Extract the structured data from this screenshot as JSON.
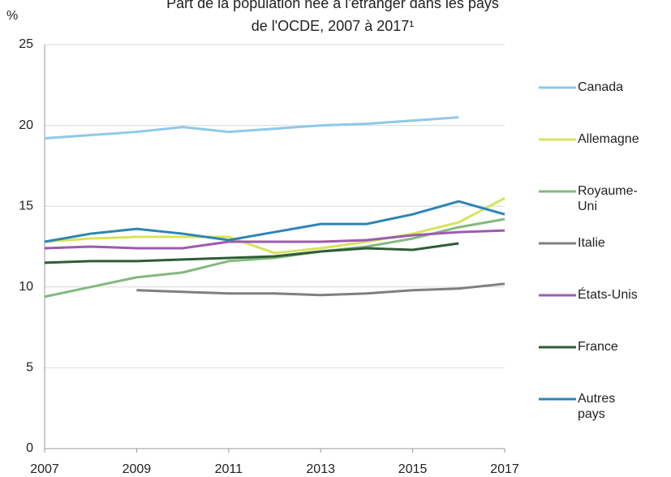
{
  "chart_data": {
    "type": "line",
    "title": [
      "Part de la population née à l'étranger dans les pays",
      "de l'OCDE, 2007 à 2017¹"
    ],
    "y_label": "%",
    "x": [
      2007,
      2008,
      2009,
      2010,
      2011,
      2012,
      2013,
      2014,
      2015,
      2016,
      2017
    ],
    "xlim": [
      2007,
      2017
    ],
    "xticks": [
      2007,
      2009,
      2011,
      2013,
      2015,
      2017
    ],
    "ylim": [
      0,
      25
    ],
    "yticks": [
      0,
      5,
      10,
      15,
      20,
      25
    ],
    "grid": true,
    "series": [
      {
        "name": "Canada",
        "color": "#8ec9e9",
        "values": [
          19.2,
          19.4,
          19.6,
          19.9,
          19.6,
          19.8,
          20.0,
          20.1,
          20.3,
          20.5,
          null
        ]
      },
      {
        "name": "Allemagne",
        "color": "#d7e35a",
        "values": [
          12.8,
          13.0,
          13.1,
          13.1,
          13.1,
          12.1,
          12.4,
          12.8,
          13.3,
          14.0,
          15.5
        ]
      },
      {
        "name": "Royaume-Uni",
        "color": "#82b97f",
        "values": [
          9.4,
          10.0,
          10.6,
          10.9,
          11.6,
          11.8,
          12.2,
          12.5,
          13.0,
          13.7,
          14.2
        ]
      },
      {
        "name": "Italie",
        "color": "#7f7f7f",
        "values": [
          null,
          null,
          9.8,
          9.7,
          9.6,
          9.6,
          9.5,
          9.6,
          9.8,
          9.9,
          10.2
        ]
      },
      {
        "name": "États-Unis",
        "color": "#9c5bb1",
        "values": [
          12.4,
          12.5,
          12.4,
          12.4,
          12.8,
          12.8,
          12.8,
          12.9,
          13.2,
          13.4,
          13.5
        ]
      },
      {
        "name": "France",
        "color": "#2f5c36",
        "values": [
          11.5,
          11.6,
          11.6,
          11.7,
          11.8,
          11.9,
          12.2,
          12.4,
          12.3,
          12.7,
          null
        ]
      },
      {
        "name": "Autres pays",
        "color": "#2c85b5",
        "values": [
          12.8,
          13.3,
          13.6,
          13.3,
          12.9,
          13.4,
          13.9,
          13.9,
          14.5,
          15.3,
          14.5
        ]
      }
    ]
  }
}
